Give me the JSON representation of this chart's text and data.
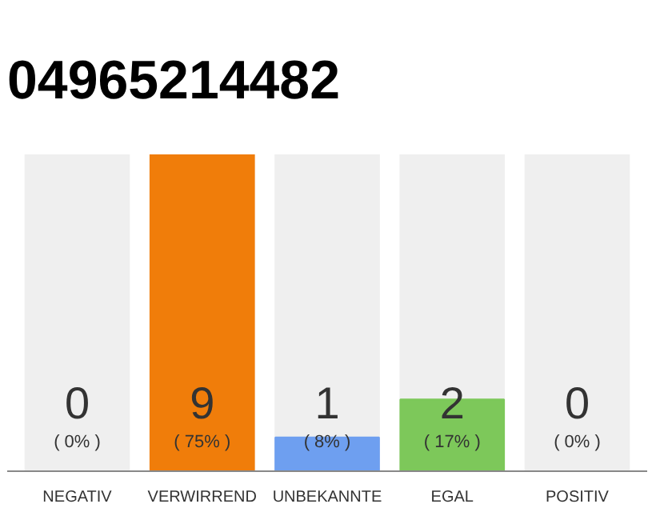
{
  "chart_data": {
    "type": "bar",
    "title": "04965214482",
    "categories": [
      "NEGATIV",
      "VERWIRREND",
      "UNBEKANNTE",
      "EGAL",
      "POSITIV"
    ],
    "values": [
      0,
      75,
      8,
      17,
      0
    ],
    "colors": [
      "#f07d0a",
      "#f07d0a",
      "#6e9ff0",
      "#7dc85a",
      "#7dc85a"
    ],
    "value_labels": [
      "( 0% )",
      "( 75% )",
      "( 8% )",
      "( 17% )",
      "( 0% )"
    ],
    "annotations": [
      "0",
      "9",
      "1",
      "2",
      "0"
    ],
    "grid": false
  }
}
